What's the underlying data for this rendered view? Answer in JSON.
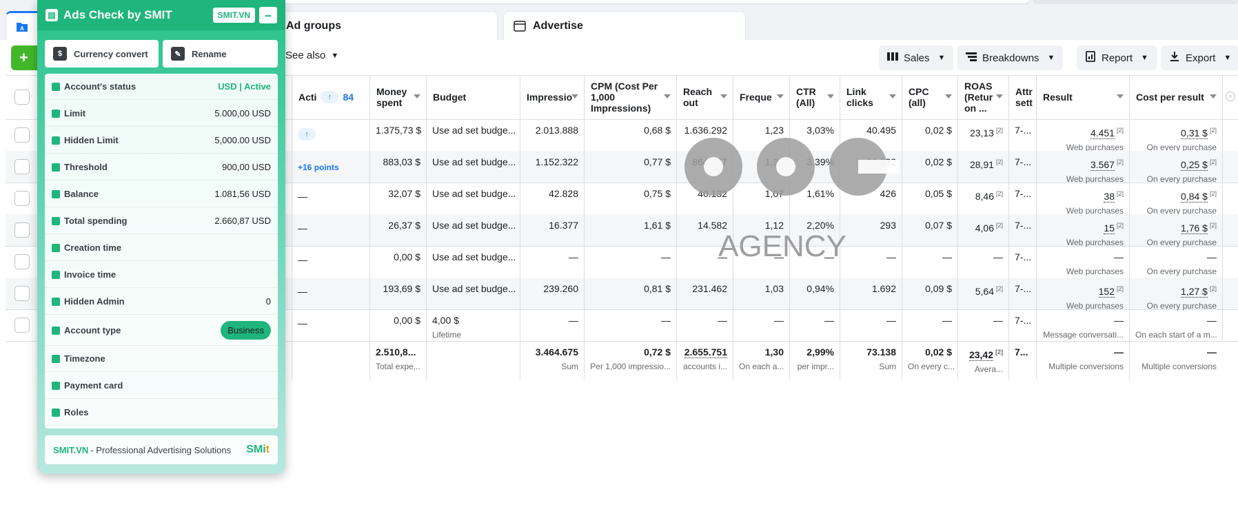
{
  "tabs": {
    "ad_groups": "Ad groups",
    "advertise": "Advertise"
  },
  "toolbar": {
    "create_label": "+",
    "see_also": "See also",
    "sales": "Sales",
    "breakdowns": "Breakdowns",
    "report": "Report",
    "export": "Export"
  },
  "columns": {
    "acti": "Acti",
    "acti_count": "84",
    "money_spent": "Money spent",
    "budget": "Budget",
    "impressions": "Impressio",
    "cpm": "CPM (Cost Per 1,000 Impressions)",
    "reach": "Reach out",
    "frequency": "Freque",
    "ctr": "CTR (All)",
    "link_clicks": "Link clicks",
    "cpc": "CPC (all)",
    "roas": "ROAS (Retur on ...",
    "attr": "Attr sett",
    "result": "Result",
    "cost_per_result": "Cost per result"
  },
  "rows": [
    {
      "acti": "icon",
      "money": "1.375,73 $",
      "budget": "Use ad set budge...",
      "budget_sub": "",
      "impr": "2.013.888",
      "cpm": "0,68 $",
      "reach": "1.636.292",
      "freq": "1,23",
      "ctr": "3,03%",
      "clicks": "40.495",
      "cpc": "0,02 $",
      "roas": "23,13",
      "attr": "7-...",
      "result": "4.451",
      "result_sub": "Web purchases",
      "cpr": "0,31 $",
      "cpr_sub": "On every purchase"
    },
    {
      "acti": "+16 points",
      "money": "883,03 $",
      "budget": "Use ad set budge...",
      "budget_sub": "",
      "impr": "1.152.322",
      "cpm": "0,77 $",
      "reach": "864.787",
      "freq": "1,33",
      "ctr": "3,39%",
      "clicks": "30.232",
      "cpc": "0,02 $",
      "roas": "28,91",
      "attr": "7-...",
      "result": "3.567",
      "result_sub": "Web purchases",
      "cpr": "0,25 $",
      "cpr_sub": "On every purchase"
    },
    {
      "acti": "—",
      "money": "32,07 $",
      "budget": "Use ad set budge...",
      "budget_sub": "",
      "impr": "42.828",
      "cpm": "0,75 $",
      "reach": "40.132",
      "freq": "1,07",
      "ctr": "1,61%",
      "clicks": "426",
      "cpc": "0,05 $",
      "roas": "8,46",
      "attr": "7-...",
      "result": "38",
      "result_sub": "Web purchases",
      "cpr": "0,84 $",
      "cpr_sub": "On every purchase"
    },
    {
      "acti": "—",
      "money": "26,37 $",
      "budget": "Use ad set budge...",
      "budget_sub": "",
      "impr": "16.377",
      "cpm": "1,61 $",
      "reach": "14.582",
      "freq": "1,12",
      "ctr": "2,20%",
      "clicks": "293",
      "cpc": "0,07 $",
      "roas": "4,06",
      "attr": "7-...",
      "result": "15",
      "result_sub": "Web purchases",
      "cpr": "1,76 $",
      "cpr_sub": "On every purchase"
    },
    {
      "acti": "—",
      "money": "0,00 $",
      "budget": "Use ad set budge...",
      "budget_sub": "",
      "impr": "—",
      "cpm": "—",
      "reach": "—",
      "freq": "—",
      "ctr": "—",
      "clicks": "—",
      "cpc": "—",
      "roas": "—",
      "attr": "7-...",
      "result": "—",
      "result_sub": "Web purchases",
      "cpr": "—",
      "cpr_sub": "On every purchase"
    },
    {
      "acti": "—",
      "money": "193,69 $",
      "budget": "Use ad set budge...",
      "budget_sub": "",
      "impr": "239.260",
      "cpm": "0,81 $",
      "reach": "231.462",
      "freq": "1,03",
      "ctr": "0,94%",
      "clicks": "1.692",
      "cpc": "0,09 $",
      "roas": "5,64",
      "attr": "7-...",
      "result": "152",
      "result_sub": "Web purchases",
      "cpr": "1,27 $",
      "cpr_sub": "On every purchase"
    },
    {
      "acti": "—",
      "money": "0,00 $",
      "budget": "4,00 $",
      "budget_sub": "Lifetime",
      "impr": "—",
      "cpm": "—",
      "reach": "—",
      "freq": "—",
      "ctr": "—",
      "clicks": "—",
      "cpc": "—",
      "roas": "—",
      "attr": "7-...",
      "result": "—",
      "result_sub": "Message conversati...",
      "cpr": "—",
      "cpr_sub": "On each start of a m..."
    }
  ],
  "totals": {
    "money": "2.510,8...",
    "money_sub": "Total expe...",
    "impr": "3.464.675",
    "impr_sub": "Sum",
    "cpm": "0,72 $",
    "cpm_sub": "Per 1,000 impressio...",
    "reach": "2.655.751",
    "reach_sub": "accounts i...",
    "freq": "1,30",
    "freq_sub": "On each a...",
    "ctr": "2,99%",
    "ctr_sub": "per impr...",
    "clicks": "73.138",
    "clicks_sub": "Sum",
    "cpc": "0,02 $",
    "cpc_sub": "On every c...",
    "roas": "23,42",
    "roas_sub": "Avera...",
    "attr": "7...",
    "result": "—",
    "result_sub": "Multiple conversions",
    "cpr": "—",
    "cpr_sub": "Multiple conversions"
  },
  "watermark": {
    "text": "AGENCY"
  },
  "panel": {
    "title": "Ads Check by SMIT",
    "badge": "SMIT.VN",
    "minimize": "–",
    "currency_convert": "Currency convert",
    "rename": "Rename",
    "items": [
      {
        "label": "Account's status",
        "value": "USD | Active"
      },
      {
        "label": "Limit",
        "value": "5.000,00 USD"
      },
      {
        "label": "Hidden Limit",
        "value": "5,000.00 USD"
      },
      {
        "label": "Threshold",
        "value": "900,00 USD"
      },
      {
        "label": "Balance",
        "value": "1.081,56 USD"
      },
      {
        "label": "Total spending",
        "value": "2.660,87 USD"
      },
      {
        "label": "Creation time",
        "value": ""
      },
      {
        "label": "Invoice time",
        "value": ""
      },
      {
        "label": "Hidden Admin",
        "value": "0"
      },
      {
        "label": "Account type",
        "value": "Business"
      },
      {
        "label": "Timezone",
        "value": ""
      },
      {
        "label": "Payment card",
        "value": ""
      },
      {
        "label": "Roles",
        "value": ""
      }
    ],
    "footer_brand": "SMIT.VN",
    "footer_text": " - Professional Advertising Solutions",
    "footer_logo_a": "SMi",
    "footer_logo_b": "t"
  },
  "colors": {
    "accent": "#1fb57c",
    "fb_blue": "#1877f2",
    "create_green": "#42b72a"
  }
}
